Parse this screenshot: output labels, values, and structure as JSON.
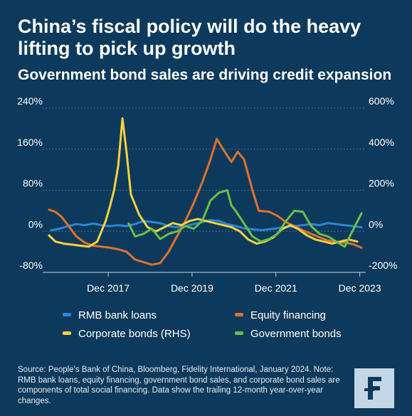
{
  "header": {
    "title": "China’s fiscal policy will do the heavy lifting to pick up growth",
    "subtitle": "Government bond sales are driving credit expansion"
  },
  "chart_data": {
    "type": "line",
    "title": "China’s fiscal policy will do the heavy lifting to pick up growth",
    "subtitle": "Government bond sales are driving credit expansion",
    "x_ticks": [
      "Dec 2017",
      "Dec 2019",
      "Dec 2021",
      "Dec 2023"
    ],
    "x_range": [
      2016.5,
      2024.0
    ],
    "y_left_ticks": [
      "240%",
      "160%",
      "80%",
      "0%",
      "-80%"
    ],
    "y_right_ticks": [
      "600%",
      "400%",
      "200%",
      "0%",
      "-200%"
    ],
    "y_left_range": [
      -80,
      240
    ],
    "y_right_range": [
      -200,
      600
    ],
    "colors": {
      "rmb": "#2b86d3",
      "equity": "#e0712b",
      "corporate": "#f7d23d",
      "government": "#6bbf46",
      "background": "#0d3a5c",
      "logo": "#c5d6e4",
      "logo_mark": "#0d3a5c"
    },
    "series": [
      {
        "name": "RMB bank loans",
        "axis": "left",
        "color": "#2b86d3",
        "points": [
          [
            2016.6,
            2
          ],
          [
            2016.8,
            5
          ],
          [
            2017.0,
            10
          ],
          [
            2017.2,
            14
          ],
          [
            2017.4,
            12
          ],
          [
            2017.6,
            15
          ],
          [
            2017.8,
            12
          ],
          [
            2018.0,
            10
          ],
          [
            2018.2,
            12
          ],
          [
            2018.4,
            10
          ],
          [
            2018.6,
            14
          ],
          [
            2018.8,
            20
          ],
          [
            2019.0,
            18
          ],
          [
            2019.2,
            16
          ],
          [
            2019.4,
            10
          ],
          [
            2019.6,
            8
          ],
          [
            2019.8,
            10
          ],
          [
            2020.0,
            14
          ],
          [
            2020.2,
            18
          ],
          [
            2020.4,
            22
          ],
          [
            2020.6,
            20
          ],
          [
            2020.8,
            14
          ],
          [
            2021.0,
            10
          ],
          [
            2021.2,
            6
          ],
          [
            2021.4,
            4
          ],
          [
            2021.6,
            2
          ],
          [
            2021.8,
            4
          ],
          [
            2022.0,
            6
          ],
          [
            2022.2,
            8
          ],
          [
            2022.4,
            10
          ],
          [
            2022.6,
            12
          ],
          [
            2022.8,
            14
          ],
          [
            2023.0,
            12
          ],
          [
            2023.2,
            16
          ],
          [
            2023.4,
            14
          ],
          [
            2023.6,
            12
          ],
          [
            2023.8,
            10
          ],
          [
            2024.0,
            8
          ]
        ]
      },
      {
        "name": "Equity financing",
        "axis": "left",
        "color": "#e0712b",
        "points": [
          [
            2016.55,
            42
          ],
          [
            2016.7,
            38
          ],
          [
            2016.85,
            28
          ],
          [
            2017.0,
            12
          ],
          [
            2017.2,
            -10
          ],
          [
            2017.4,
            -22
          ],
          [
            2017.6,
            -28
          ],
          [
            2017.8,
            -30
          ],
          [
            2018.0,
            -32
          ],
          [
            2018.2,
            -35
          ],
          [
            2018.4,
            -40
          ],
          [
            2018.6,
            -55
          ],
          [
            2018.8,
            -60
          ],
          [
            2019.0,
            -65
          ],
          [
            2019.2,
            -62
          ],
          [
            2019.4,
            -40
          ],
          [
            2019.6,
            -10
          ],
          [
            2019.8,
            20
          ],
          [
            2020.0,
            55
          ],
          [
            2020.2,
            95
          ],
          [
            2020.4,
            140
          ],
          [
            2020.55,
            180
          ],
          [
            2020.7,
            160
          ],
          [
            2020.9,
            135
          ],
          [
            2021.05,
            155
          ],
          [
            2021.2,
            140
          ],
          [
            2021.4,
            80
          ],
          [
            2021.55,
            40
          ],
          [
            2021.8,
            38
          ],
          [
            2022.0,
            30
          ],
          [
            2022.2,
            18
          ],
          [
            2022.4,
            10
          ],
          [
            2022.6,
            2
          ],
          [
            2022.8,
            -5
          ],
          [
            2023.0,
            -12
          ],
          [
            2023.2,
            -18
          ],
          [
            2023.4,
            -20
          ],
          [
            2023.6,
            -22
          ],
          [
            2023.8,
            -25
          ],
          [
            2024.0,
            -32
          ]
        ]
      },
      {
        "name": "Corporate bonds (RHS)",
        "axis": "right",
        "color": "#f7d23d",
        "points": [
          [
            2016.55,
            -20
          ],
          [
            2016.7,
            -50
          ],
          [
            2016.9,
            -60
          ],
          [
            2017.1,
            -65
          ],
          [
            2017.3,
            -70
          ],
          [
            2017.5,
            -75
          ],
          [
            2017.7,
            -50
          ],
          [
            2017.9,
            50
          ],
          [
            2018.0,
            120
          ],
          [
            2018.1,
            200
          ],
          [
            2018.2,
            320
          ],
          [
            2018.3,
            550
          ],
          [
            2018.4,
            380
          ],
          [
            2018.5,
            180
          ],
          [
            2018.7,
            80
          ],
          [
            2018.9,
            20
          ],
          [
            2019.1,
            0
          ],
          [
            2019.3,
            20
          ],
          [
            2019.5,
            40
          ],
          [
            2019.7,
            30
          ],
          [
            2019.9,
            50
          ],
          [
            2020.1,
            60
          ],
          [
            2020.3,
            50
          ],
          [
            2020.5,
            40
          ],
          [
            2020.7,
            30
          ],
          [
            2020.9,
            20
          ],
          [
            2021.1,
            0
          ],
          [
            2021.3,
            -40
          ],
          [
            2021.5,
            -60
          ],
          [
            2021.7,
            -50
          ],
          [
            2021.9,
            -30
          ],
          [
            2022.1,
            10
          ],
          [
            2022.3,
            30
          ],
          [
            2022.5,
            10
          ],
          [
            2022.7,
            -20
          ],
          [
            2022.9,
            -40
          ],
          [
            2023.1,
            -50
          ],
          [
            2023.3,
            -60
          ],
          [
            2023.5,
            -50
          ],
          [
            2023.7,
            -40
          ],
          [
            2023.9,
            -50
          ]
        ]
      },
      {
        "name": "Government bonds",
        "axis": "left",
        "color": "#6bbf46",
        "points": [
          [
            2018.45,
            15
          ],
          [
            2018.6,
            -10
          ],
          [
            2018.8,
            -5
          ],
          [
            2019.0,
            5
          ],
          [
            2019.2,
            -15
          ],
          [
            2019.4,
            -5
          ],
          [
            2019.6,
            0
          ],
          [
            2019.8,
            10
          ],
          [
            2020.0,
            5
          ],
          [
            2020.2,
            20
          ],
          [
            2020.4,
            60
          ],
          [
            2020.6,
            75
          ],
          [
            2020.8,
            80
          ],
          [
            2020.9,
            50
          ],
          [
            2021.0,
            40
          ],
          [
            2021.2,
            15
          ],
          [
            2021.4,
            -10
          ],
          [
            2021.6,
            -20
          ],
          [
            2021.8,
            -15
          ],
          [
            2022.0,
            -5
          ],
          [
            2022.2,
            20
          ],
          [
            2022.4,
            40
          ],
          [
            2022.6,
            38
          ],
          [
            2022.8,
            10
          ],
          [
            2023.0,
            -5
          ],
          [
            2023.2,
            -10
          ],
          [
            2023.4,
            -20
          ],
          [
            2023.6,
            -30
          ],
          [
            2023.75,
            -5
          ],
          [
            2024.0,
            35
          ]
        ]
      }
    ],
    "legend": {
      "placement": "bottom",
      "entries": [
        "RMB bank loans",
        "Equity financing",
        "Corporate bonds (RHS)",
        "Government bonds"
      ]
    }
  },
  "source": "Source: People's Bank of China, Bloomberg, Fidelity International, January 2024. Note: RMB bank loans, equity financing, government bond sales, and corporate bond sales are components of total social financing. Data show the trailing 12-month year-over-year changes.",
  "logo": {
    "icon": "fidelity-f-logo-icon"
  }
}
